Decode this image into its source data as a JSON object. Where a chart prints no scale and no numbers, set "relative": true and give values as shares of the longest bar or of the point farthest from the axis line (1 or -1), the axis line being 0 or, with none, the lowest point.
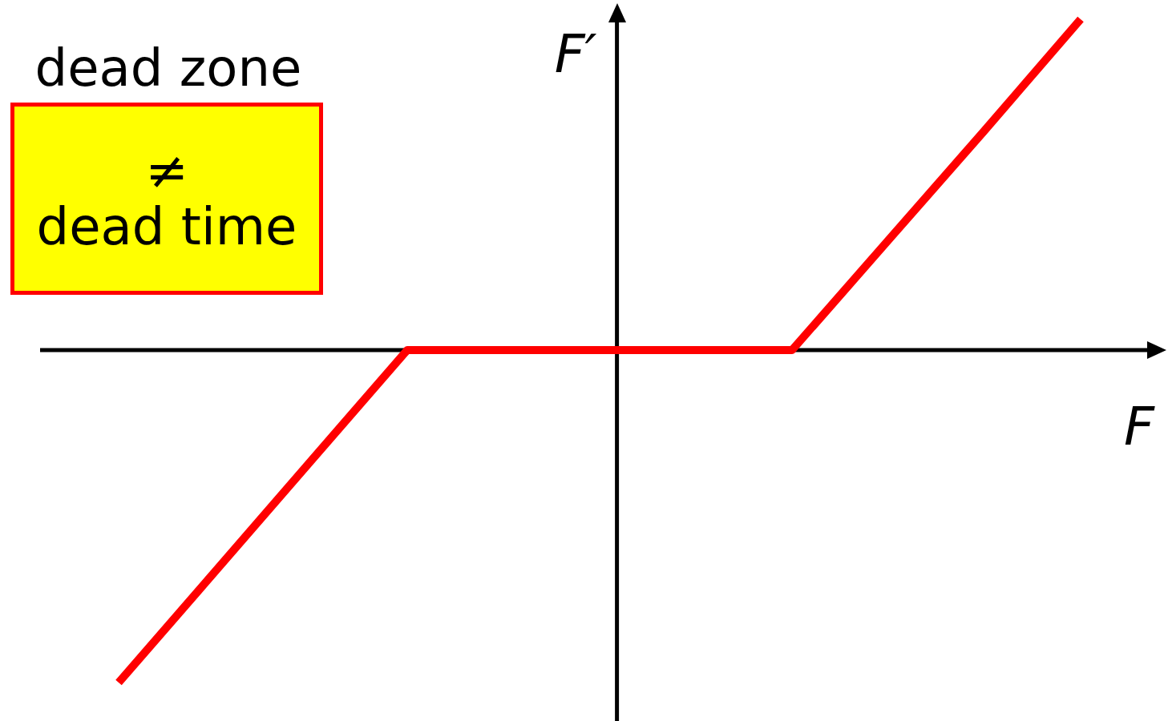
{
  "chart_data": {
    "type": "line",
    "relative": true,
    "xlabel": "F",
    "ylabel": "F′",
    "categories": [
      null,
      null,
      null,
      null,
      null,
      null,
      null,
      null,
      null,
      null,
      null
    ],
    "series": [
      {
        "color": "#ff0000",
        "values": [
          -1,
          -0.667,
          -0.333,
          0,
          0,
          0,
          0,
          0,
          0.33,
          0.66,
          0.995
        ]
      }
    ],
    "annotations": [
      "dead zone",
      "≠",
      "dead time"
    ],
    "legend": false,
    "grid": false,
    "tick_labels": false,
    "marker": "none",
    "line_style": "solid"
  }
}
